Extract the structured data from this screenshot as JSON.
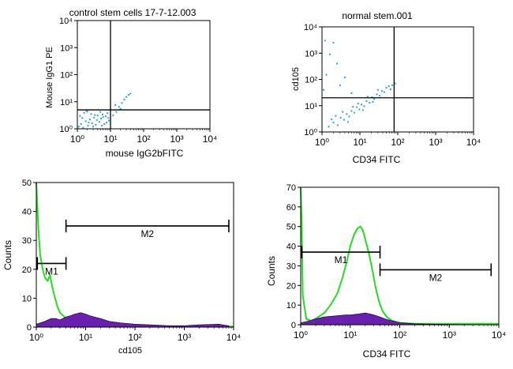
{
  "chart_data": [
    {
      "type": "scatter",
      "title": "control stem cells 17-7-12.003",
      "xlabel": "mouse IgG2bFITC",
      "ylabel": "Mouse IgG1 PE",
      "x_scale": "log",
      "y_scale": "log",
      "xlim": [
        1,
        10000
      ],
      "ylim": [
        1,
        10000
      ],
      "xticks": [
        1,
        10,
        100,
        1000,
        10000
      ],
      "yticks": [
        1,
        10,
        100,
        1000,
        10000
      ],
      "quadrant_x": 10,
      "quadrant_y": 5,
      "point_color": "#2aa0e0",
      "cluster_note": "dense population at x 1–10, y 1–5; sparse cells up to x≈40, y≈20",
      "points": [
        [
          1.1,
          1.2
        ],
        [
          1.3,
          1.5
        ],
        [
          1.5,
          1.1
        ],
        [
          1.8,
          1.9
        ],
        [
          2.1,
          1.3
        ],
        [
          2.4,
          2.2
        ],
        [
          2.8,
          1.6
        ],
        [
          3.2,
          2.6
        ],
        [
          3.6,
          1.4
        ],
        [
          4.1,
          3.1
        ],
        [
          4.6,
          1.8
        ],
        [
          5.2,
          2.4
        ],
        [
          5.8,
          3.4
        ],
        [
          6.5,
          1.5
        ],
        [
          7.2,
          2.9
        ],
        [
          8.1,
          3.8
        ],
        [
          9.0,
          2.0
        ],
        [
          1.2,
          3.0
        ],
        [
          1.6,
          3.9
        ],
        [
          2.0,
          4.3
        ],
        [
          2.6,
          3.5
        ],
        [
          3.0,
          1.2
        ],
        [
          3.9,
          2.1
        ],
        [
          4.9,
          4.2
        ],
        [
          6.0,
          2.7
        ],
        [
          7.6,
          1.7
        ],
        [
          1.4,
          2.5
        ],
        [
          2.2,
          1.7
        ],
        [
          3.4,
          3.2
        ],
        [
          5.5,
          1.3
        ],
        [
          8.6,
          2.5
        ],
        [
          1.9,
          4.6
        ],
        [
          12,
          3.1
        ],
        [
          15,
          4.2
        ],
        [
          18,
          6.5
        ],
        [
          22,
          9.0
        ],
        [
          26,
          12
        ],
        [
          30,
          15
        ],
        [
          35,
          18
        ],
        [
          40,
          20
        ],
        [
          14,
          7.5
        ],
        [
          20,
          5.5
        ]
      ]
    },
    {
      "type": "scatter",
      "title": "normal stem.001",
      "xlabel": "CD34 FITC",
      "ylabel": "cd105",
      "x_scale": "log",
      "y_scale": "log",
      "xlim": [
        1,
        10000
      ],
      "ylim": [
        1,
        10000
      ],
      "xticks": [
        1,
        10,
        100,
        1000,
        10000
      ],
      "yticks": [
        1,
        10,
        100,
        1000,
        10000
      ],
      "quadrant_x": 80,
      "quadrant_y": 20,
      "point_color": "#2aa0e0",
      "cluster_note": "diagonal population from (1.5,1.5) to (60,60); scattered cells in upper-left",
      "points": [
        [
          1.5,
          1.6
        ],
        [
          2.0,
          2.3
        ],
        [
          2.6,
          1.8
        ],
        [
          3.1,
          3.5
        ],
        [
          3.8,
          2.9
        ],
        [
          4.5,
          4.8
        ],
        [
          5.2,
          3.9
        ],
        [
          6.0,
          6.3
        ],
        [
          7.1,
          5.4
        ],
        [
          8.3,
          8.8
        ],
        [
          9.7,
          7.2
        ],
        [
          11,
          11
        ],
        [
          13,
          9.5
        ],
        [
          15,
          15
        ],
        [
          18,
          13
        ],
        [
          21,
          21
        ],
        [
          24,
          18
        ],
        [
          28,
          27
        ],
        [
          33,
          24
        ],
        [
          38,
          36
        ],
        [
          44,
          33
        ],
        [
          50,
          48
        ],
        [
          58,
          55
        ],
        [
          65,
          42
        ],
        [
          72,
          60
        ],
        [
          85,
          70
        ],
        [
          1.8,
          3.0
        ],
        [
          2.3,
          4.1
        ],
        [
          3.5,
          5.8
        ],
        [
          4.9,
          2.4
        ],
        [
          6.6,
          9.1
        ],
        [
          9.0,
          12
        ],
        [
          12,
          6.8
        ],
        [
          16,
          22
        ],
        [
          22,
          14
        ],
        [
          30,
          40
        ],
        [
          1.3,
          150
        ],
        [
          1.6,
          900
        ],
        [
          2.0,
          2500
        ],
        [
          3.0,
          60
        ],
        [
          1.2,
          3000
        ],
        [
          2.5,
          400
        ],
        [
          4.0,
          120
        ],
        [
          1.1,
          40
        ],
        [
          6.0,
          30
        ]
      ]
    },
    {
      "type": "histogram",
      "xlabel": "cd105",
      "ylabel": "Counts",
      "x_scale": "log",
      "xlim": [
        1,
        10000
      ],
      "ylim": [
        0,
        50
      ],
      "xticks": [
        1,
        10,
        100,
        1000,
        10000
      ],
      "yticks": [
        0,
        10,
        20,
        30,
        40,
        50
      ],
      "series": [
        {
          "color": "#22dd22",
          "style": "line",
          "x": [
            1.0,
            1.1,
            1.2,
            1.35,
            1.5,
            1.7,
            1.9,
            2.1,
            2.4,
            2.7,
            3.0,
            3.5,
            4.0,
            5.0,
            6.5,
            8.0,
            10,
            15,
            20,
            30,
            100,
            1000,
            10000
          ],
          "values": [
            50,
            34,
            25,
            20,
            17,
            16,
            18,
            14,
            10,
            7,
            5,
            4,
            3,
            2,
            2,
            1.5,
            1.5,
            1,
            0.5,
            0.3,
            0.2,
            0.2,
            0.2
          ]
        },
        {
          "color": "#6a1fb0",
          "style": "fill",
          "x": [
            1.0,
            1.5,
            2.0,
            2.5,
            3.0,
            4.0,
            5.0,
            6.0,
            8.0,
            10,
            12,
            15,
            20,
            30,
            50,
            100,
            200,
            500,
            1000,
            2000,
            5000,
            8000
          ],
          "values": [
            1,
            2,
            3,
            3,
            2.5,
            3.5,
            4,
            4.5,
            5,
            4.5,
            4,
            3.5,
            3,
            2,
            1.5,
            1,
            0.8,
            0.5,
            0.5,
            0.8,
            1,
            0.5
          ]
        }
      ],
      "markers": [
        {
          "label": "M1",
          "x_start": 1.05,
          "x_end": 4.0,
          "y": 22
        },
        {
          "label": "M2",
          "x_start": 4.0,
          "x_end": 8000,
          "y": 35
        }
      ]
    },
    {
      "type": "histogram",
      "xlabel": "CD34 FITC",
      "ylabel": "Counts",
      "x_scale": "log",
      "xlim": [
        1,
        10000
      ],
      "ylim": [
        0,
        70
      ],
      "xticks": [
        1,
        10,
        100,
        1000,
        10000
      ],
      "yticks": [
        0,
        10,
        20,
        30,
        40,
        50,
        60,
        70
      ],
      "series": [
        {
          "color": "#22dd22",
          "style": "line",
          "x": [
            1.0,
            1.05,
            1.1,
            1.3,
            1.6,
            2.0,
            3.0,
            4.0,
            5.5,
            7.0,
            8.5,
            10,
            12,
            14,
            16,
            18,
            20,
            24,
            28,
            32,
            38,
            45,
            55,
            70,
            100,
            200,
            1000,
            10000
          ],
          "values": [
            70,
            52,
            15,
            3,
            2,
            3,
            6,
            10,
            16,
            24,
            32,
            40,
            46,
            49,
            50,
            48,
            44,
            36,
            28,
            20,
            12,
            7,
            4,
            2,
            1,
            0.5,
            0.5,
            0.5
          ]
        },
        {
          "color": "#6a1fb0",
          "style": "fill",
          "x": [
            1.0,
            1.5,
            2.0,
            3.0,
            5.0,
            8.0,
            10,
            15,
            20,
            25,
            30,
            40,
            50,
            70,
            100,
            200,
            500,
            1000,
            3000,
            10000
          ],
          "values": [
            1,
            2,
            3,
            4,
            4.5,
            5,
            5,
            5.5,
            6,
            5.5,
            5,
            4,
            3,
            2,
            1,
            0.5,
            0.3,
            0.2,
            0.1,
            0
          ]
        }
      ],
      "markers": [
        {
          "label": "M1",
          "x_start": 1.05,
          "x_end": 40,
          "y": 37
        },
        {
          "label": "M2",
          "x_start": 40,
          "x_end": 7000,
          "y": 28
        }
      ]
    }
  ]
}
